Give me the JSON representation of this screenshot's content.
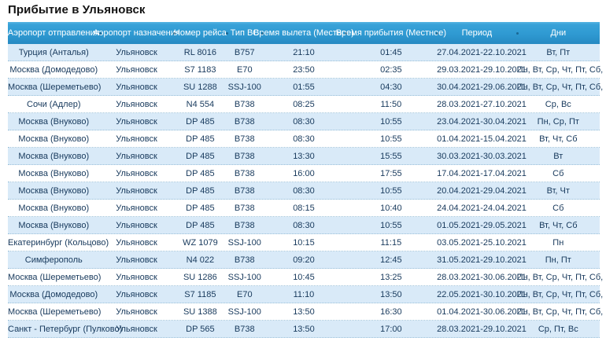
{
  "page": {
    "title": "Прибытие в Ульяновск"
  },
  "colors": {
    "header_blue_top": "#55b4e1",
    "header_blue_bottom": "#2689c2",
    "row_alt_blue": "#d9eaf8",
    "row_text": "#17395c",
    "dotted_separator": "#9cc1d9"
  },
  "table": {
    "columns": [
      "Аэропорт отправления",
      "Аэропорт назначения",
      "Номер рейса",
      "Тип ВС",
      "Время вылета (Местное)",
      "Время прибытия (Местное)",
      "Период",
      "Дни"
    ],
    "rows": [
      [
        "Турция (Анталья)",
        "Ульяновск",
        "RL 8016",
        "B757",
        "21:10",
        "01:45",
        "27.04.2021-22.10.2021",
        "Вт, Пт"
      ],
      [
        "Москва (Домодедово)",
        "Ульяновск",
        "S7 1183",
        "E70",
        "23:50",
        "02:35",
        "29.03.2021-29.10.2021",
        "Пн, Вт, Ср, Чт, Пт, Сб, Вс"
      ],
      [
        "Москва (Шереметьево)",
        "Ульяновск",
        "SU 1288",
        "SSJ-100",
        "01:55",
        "04:30",
        "30.04.2021-29.06.2021",
        "Пн, Вт, Ср, Чт, Пт, Сб, Вс"
      ],
      [
        "Сочи (Адлер)",
        "Ульяновск",
        "N4 554",
        "B738",
        "08:25",
        "11:50",
        "28.03.2021-27.10.2021",
        "Ср, Вс"
      ],
      [
        "Москва (Внуково)",
        "Ульяновск",
        "DP 485",
        "B738",
        "08:30",
        "10:55",
        "23.04.2021-30.04.2021",
        "Пн, Ср, Пт"
      ],
      [
        "Москва (Внуково)",
        "Ульяновск",
        "DP 485",
        "B738",
        "08:30",
        "10:55",
        "01.04.2021-15.04.2021",
        "Вт, Чт, Сб"
      ],
      [
        "Москва (Внуково)",
        "Ульяновск",
        "DP 485",
        "B738",
        "13:30",
        "15:55",
        "30.03.2021-30.03.2021",
        "Вт"
      ],
      [
        "Москва (Внуково)",
        "Ульяновск",
        "DP 485",
        "B738",
        "16:00",
        "17:55",
        "17.04.2021-17.04.2021",
        "Сб"
      ],
      [
        "Москва (Внуково)",
        "Ульяновск",
        "DP 485",
        "B738",
        "08:30",
        "10:55",
        "20.04.2021-29.04.2021",
        "Вт, Чт"
      ],
      [
        "Москва (Внуково)",
        "Ульяновск",
        "DP 485",
        "B738",
        "08:15",
        "10:40",
        "24.04.2021-24.04.2021",
        "Сб"
      ],
      [
        "Москва (Внуково)",
        "Ульяновск",
        "DP 485",
        "B738",
        "08:30",
        "10:55",
        "01.05.2021-29.05.2021",
        "Вт, Чт, Сб"
      ],
      [
        "Екатеринбург (Кольцово)",
        "Ульяновск",
        "WZ 1079",
        "SSJ-100",
        "10:15",
        "11:15",
        "03.05.2021-25.10.2021",
        "Пн"
      ],
      [
        "Симферополь",
        "Ульяновск",
        "N4 022",
        "B738",
        "09:20",
        "12:45",
        "31.05.2021-29.10.2021",
        "Пн, Пт"
      ],
      [
        "Москва (Шереметьево)",
        "Ульяновск",
        "SU 1286",
        "SSJ-100",
        "10:45",
        "13:25",
        "28.03.2021-30.06.2021",
        "Пн, Вт, Ср, Чт, Пт, Сб, Вс"
      ],
      [
        "Москва (Домодедово)",
        "Ульяновск",
        "S7 1185",
        "E70",
        "11:10",
        "13:50",
        "22.05.2021-30.10.2021",
        "Пн, Вт, Ср, Чт, Пт, Сб, Вс"
      ],
      [
        "Москва (Шереметьево)",
        "Ульяновск",
        "SU 1388",
        "SSJ-100",
        "13:50",
        "16:30",
        "01.04.2021-30.06.2021",
        "Пн, Вт, Ср, Чт, Пт, Сб, Вс"
      ],
      [
        "Санкт - Петербург (Пулково)",
        "Ульяновск",
        "DP 565",
        "B738",
        "13:50",
        "17:00",
        "28.03.2021-29.10.2021",
        "Ср, Пт, Вс"
      ]
    ]
  }
}
